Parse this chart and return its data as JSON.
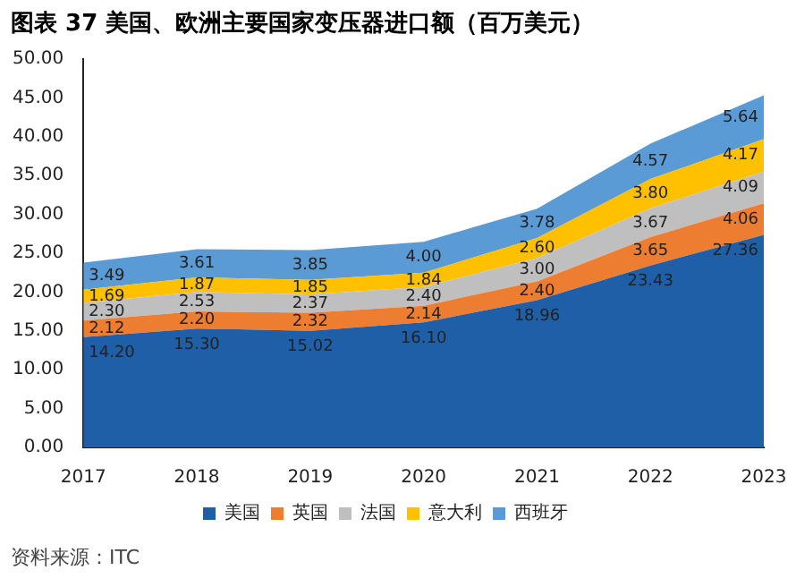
{
  "chart_data": {
    "type": "area",
    "title": "图表 37 美国、欧洲主要国家变压器进口额（百万美元）",
    "categories": [
      "2017",
      "2018",
      "2019",
      "2020",
      "2021",
      "2022",
      "2023"
    ],
    "stacked": true,
    "series": [
      {
        "name": "美国",
        "color": "#1f5fa8",
        "values": [
          14.2,
          15.3,
          15.02,
          16.1,
          18.96,
          23.43,
          27.36
        ],
        "value_labels": [
          "14.20",
          "15.30",
          "15.02",
          "16.10",
          "18.96",
          "23.43",
          "27.36"
        ]
      },
      {
        "name": "英国",
        "color": "#ed7d31",
        "values": [
          2.12,
          2.2,
          2.32,
          2.14,
          2.4,
          3.65,
          4.06
        ],
        "value_labels": [
          "2.12",
          "2.20",
          "2.32",
          "2.14",
          "2.40",
          "3.65",
          "4.06"
        ]
      },
      {
        "name": "法国",
        "color": "#bfbfbf",
        "values": [
          2.3,
          2.53,
          2.37,
          2.4,
          3.0,
          3.67,
          4.09
        ],
        "value_labels": [
          "2.30",
          "2.53",
          "2.37",
          "2.40",
          "3.00",
          "3.67",
          "4.09"
        ]
      },
      {
        "name": "意大利",
        "color": "#ffc000",
        "values": [
          1.69,
          1.87,
          1.85,
          1.84,
          2.6,
          3.8,
          4.17
        ],
        "value_labels": [
          "1.69",
          "1.87",
          "1.85",
          "1.84",
          "2.60",
          "3.80",
          "4.17"
        ]
      },
      {
        "name": "西班牙",
        "color": "#5b9bd5",
        "values": [
          3.49,
          3.61,
          3.85,
          4.0,
          3.78,
          4.57,
          5.64
        ],
        "value_labels": [
          "3.49",
          "3.61",
          "3.85",
          "4.00",
          "3.78",
          "4.57",
          "5.64"
        ]
      }
    ],
    "ylim": [
      0,
      50
    ],
    "yticks": [
      {
        "value": 0,
        "label": "0.00"
      },
      {
        "value": 5,
        "label": "5.00"
      },
      {
        "value": 10,
        "label": "10.00"
      },
      {
        "value": 15,
        "label": "15.00"
      },
      {
        "value": 20,
        "label": "20.00"
      },
      {
        "value": 25,
        "label": "25.00"
      },
      {
        "value": 30,
        "label": "30.00"
      },
      {
        "value": 35,
        "label": "35.00"
      },
      {
        "value": 40,
        "label": "40.00"
      },
      {
        "value": 45,
        "label": "45.00"
      },
      {
        "value": 50,
        "label": "50.00"
      }
    ],
    "grid": false,
    "legend": "bottom",
    "annotations": [
      "资料来源：ITC"
    ]
  }
}
